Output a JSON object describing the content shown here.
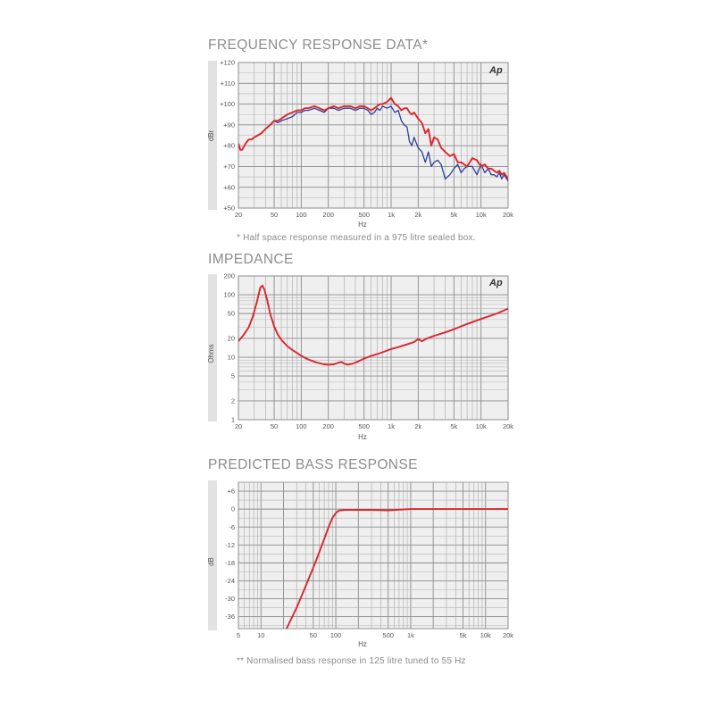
{
  "colors": {
    "red": "#d9262c",
    "blue": "#2d3f9a",
    "panel": "#efefef",
    "grid": "#9a9a9a",
    "bar": "#e2e2e2"
  },
  "chart_data": [
    {
      "id": "freq",
      "type": "line",
      "title": "FREQUENCY RESPONSE DATA*",
      "note": "* Half space response measured in a 975 litre sealed box.",
      "xlabel": "Hz",
      "ylabel": "dBr",
      "logo": "Ap",
      "xscale": "log",
      "xlim": [
        20,
        20000
      ],
      "ylim": [
        50,
        120
      ],
      "xticks": [
        {
          "v": 20,
          "t": "20"
        },
        {
          "v": 50,
          "t": "50"
        },
        {
          "v": 100,
          "t": "100"
        },
        {
          "v": 200,
          "t": "200"
        },
        {
          "v": 500,
          "t": "500"
        },
        {
          "v": 1000,
          "t": "1k"
        },
        {
          "v": 2000,
          "t": "2k"
        },
        {
          "v": 5000,
          "t": "5k"
        },
        {
          "v": 10000,
          "t": "10k"
        },
        {
          "v": 20000,
          "t": "20k"
        }
      ],
      "yticks": [
        {
          "v": 50,
          "t": "+50"
        },
        {
          "v": 60,
          "t": "+60"
        },
        {
          "v": 70,
          "t": "+70"
        },
        {
          "v": 80,
          "t": "+80"
        },
        {
          "v": 90,
          "t": "+90"
        },
        {
          "v": 100,
          "t": "+100"
        },
        {
          "v": 110,
          "t": "+110"
        },
        {
          "v": 120,
          "t": "+120"
        }
      ],
      "series": [
        {
          "color": "blue",
          "x": [
            20,
            21,
            22,
            24,
            26,
            28,
            30,
            33,
            36,
            40,
            45,
            50,
            55,
            60,
            70,
            80,
            90,
            100,
            110,
            120,
            140,
            160,
            180,
            200,
            230,
            260,
            300,
            350,
            400,
            450,
            500,
            550,
            600,
            650,
            700,
            750,
            800,
            900,
            1000,
            1100,
            1200,
            1300,
            1400,
            1500,
            1600,
            1700,
            1800,
            2000,
            2200,
            2400,
            2600,
            2800,
            3000,
            3300,
            3600,
            4000,
            4500,
            5000,
            5500,
            6000,
            6500,
            7000,
            8000,
            9000,
            10000,
            11000,
            12000,
            13000,
            14000,
            15000,
            16000,
            17000,
            18000,
            20000
          ],
          "y": [
            81,
            78,
            78,
            81,
            83,
            83,
            84,
            85,
            86,
            88,
            90,
            92,
            91,
            92,
            93,
            94,
            96,
            96,
            97,
            97,
            98,
            97,
            96,
            98,
            98,
            97,
            98,
            98,
            97,
            98,
            98,
            97,
            95,
            96,
            98,
            97,
            99,
            98,
            99,
            96,
            97,
            92,
            90,
            89,
            82,
            80,
            84,
            79,
            77,
            72,
            77,
            70,
            72,
            73,
            71,
            64,
            66,
            69,
            71,
            67,
            69,
            70,
            70,
            66,
            71,
            67,
            69,
            66,
            66,
            65,
            67,
            64,
            66,
            63
          ]
        },
        {
          "color": "red",
          "x": [
            20,
            21,
            22,
            24,
            26,
            28,
            30,
            33,
            36,
            40,
            45,
            50,
            55,
            60,
            70,
            80,
            90,
            100,
            110,
            120,
            140,
            160,
            180,
            200,
            230,
            260,
            300,
            350,
            400,
            450,
            500,
            550,
            600,
            650,
            700,
            750,
            800,
            900,
            1000,
            1100,
            1200,
            1300,
            1400,
            1500,
            1600,
            1700,
            1800,
            2000,
            2200,
            2400,
            2600,
            2800,
            3000,
            3300,
            3600,
            4000,
            4500,
            5000,
            5500,
            6000,
            6500,
            7000,
            8000,
            9000,
            10000,
            11000,
            12000,
            13000,
            14000,
            15000,
            16000,
            17000,
            18000,
            20000
          ],
          "y": [
            81,
            78,
            78,
            81,
            83,
            83,
            84,
            85,
            86,
            88,
            90,
            92,
            92,
            93,
            95,
            96,
            97,
            97,
            98,
            98,
            99,
            98,
            97,
            98,
            99,
            98,
            99,
            99,
            98,
            99,
            99,
            98,
            97,
            98,
            99,
            100,
            100,
            101,
            103,
            100,
            99,
            97,
            98,
            98,
            96,
            95,
            96,
            93,
            91,
            86,
            88,
            80,
            84,
            83,
            79,
            77,
            75,
            76,
            72,
            72,
            71,
            70,
            74,
            73,
            70,
            71,
            69,
            69,
            68,
            67,
            68,
            66,
            67,
            64
          ]
        }
      ]
    },
    {
      "id": "imp",
      "type": "line",
      "title": "IMPEDANCE",
      "xlabel": "Hz",
      "ylabel": "Ohms",
      "logo": "Ap",
      "xscale": "log",
      "yscale": "log",
      "xlim": [
        20,
        20000
      ],
      "ylim": [
        1,
        200
      ],
      "xticks": [
        {
          "v": 20,
          "t": "20"
        },
        {
          "v": 50,
          "t": "50"
        },
        {
          "v": 100,
          "t": "100"
        },
        {
          "v": 200,
          "t": "200"
        },
        {
          "v": 500,
          "t": "500"
        },
        {
          "v": 1000,
          "t": "1k"
        },
        {
          "v": 2000,
          "t": "2k"
        },
        {
          "v": 5000,
          "t": "5k"
        },
        {
          "v": 10000,
          "t": "10k"
        },
        {
          "v": 20000,
          "t": "20k"
        }
      ],
      "yticks": [
        {
          "v": 1,
          "t": "1"
        },
        {
          "v": 2,
          "t": "2"
        },
        {
          "v": 5,
          "t": "5"
        },
        {
          "v": 10,
          "t": "10"
        },
        {
          "v": 20,
          "t": "20"
        },
        {
          "v": 50,
          "t": "50"
        },
        {
          "v": 100,
          "t": "100"
        },
        {
          "v": 200,
          "t": "200"
        }
      ],
      "series": [
        {
          "color": "red",
          "x": [
            20,
            23,
            26,
            29,
            32,
            35,
            37,
            39,
            42,
            45,
            50,
            55,
            60,
            70,
            80,
            100,
            120,
            150,
            180,
            200,
            230,
            260,
            280,
            300,
            330,
            360,
            400,
            450,
            500,
            600,
            700,
            800,
            1000,
            1200,
            1500,
            1800,
            2000,
            2200,
            2500,
            3000,
            4000,
            5000,
            7000,
            10000,
            15000,
            20000
          ],
          "y": [
            18,
            23,
            30,
            45,
            75,
            130,
            140,
            120,
            80,
            50,
            31,
            23,
            19,
            15,
            13,
            10.5,
            9.2,
            8.2,
            7.7,
            7.6,
            7.7,
            8.2,
            8.4,
            7.9,
            7.6,
            7.8,
            8.2,
            8.8,
            9.5,
            10.5,
            11.2,
            12,
            13.5,
            14.5,
            16,
            17.5,
            19.5,
            18,
            20,
            22,
            25,
            28,
            34,
            41,
            50,
            60
          ]
        }
      ]
    },
    {
      "id": "bass",
      "type": "line",
      "title": "PREDICTED BASS RESPONSE",
      "note": "** Normalised bass response in 125 litre tuned to 55 Hz",
      "xlabel": "Hz",
      "ylabel": "dB",
      "xscale": "log",
      "xlim": [
        5,
        20000
      ],
      "ylim": [
        -40,
        9
      ],
      "xticks": [
        {
          "v": 5,
          "t": "5"
        },
        {
          "v": 10,
          "t": "10"
        },
        {
          "v": 50,
          "t": "50"
        },
        {
          "v": 100,
          "t": "100"
        },
        {
          "v": 500,
          "t": "500"
        },
        {
          "v": 1000,
          "t": "1k"
        },
        {
          "v": 5000,
          "t": "5k"
        },
        {
          "v": 10000,
          "t": "10k"
        },
        {
          "v": 20000,
          "t": "20k"
        }
      ],
      "yticks": [
        {
          "v": 6,
          "t": "+6"
        },
        {
          "v": 0,
          "t": "0"
        },
        {
          "v": -6,
          "t": "-6"
        },
        {
          "v": -12,
          "t": "-12"
        },
        {
          "v": -18,
          "t": "-18"
        },
        {
          "v": -24,
          "t": "-24"
        },
        {
          "v": -30,
          "t": "-30"
        },
        {
          "v": -36,
          "t": "-36"
        }
      ],
      "series": [
        {
          "color": "red",
          "x": [
            22,
            30,
            40,
            55,
            70,
            80,
            90,
            100,
            110,
            130,
            150,
            200,
            300,
            500,
            700,
            1000,
            2000,
            5000,
            20000
          ],
          "y": [
            -40,
            -33,
            -25.5,
            -17,
            -10,
            -6,
            -3,
            -1.3,
            -0.5,
            -0.3,
            -0.3,
            -0.3,
            -0.3,
            -0.4,
            -0.2,
            0,
            0,
            0,
            0
          ]
        }
      ]
    }
  ]
}
